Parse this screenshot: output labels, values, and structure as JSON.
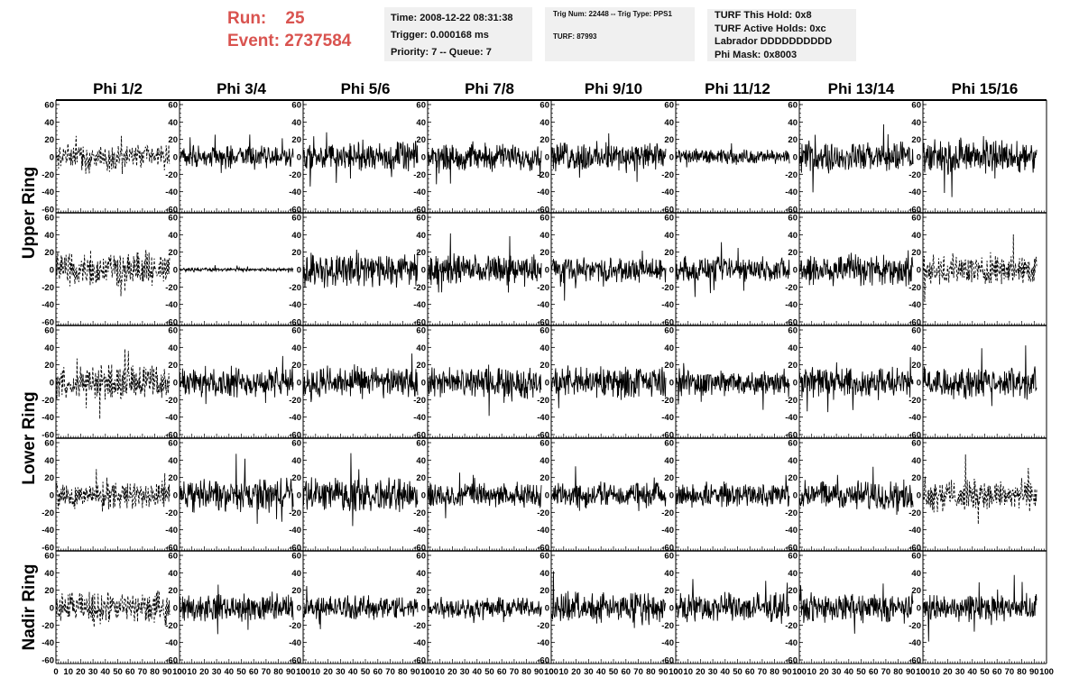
{
  "header": {
    "run_label": "Run:",
    "run_value": "25",
    "event_label": "Event:",
    "event_value": "2737584"
  },
  "info_box_1": {
    "time": "Time: 2008-12-22 08:31:38",
    "trigger": "Trigger: 0.000168 ms",
    "priority": "Priority: 7 -- Queue: 7"
  },
  "info_box_2": {
    "trig": "Trig Num: 22448 -- Trig Type: PPS1",
    "turf": "TURF: 87993"
  },
  "info_box_3": {
    "hold": "TURF This Hold: 0x8",
    "active": "TURF Active Holds: 0xc",
    "labrador": "Labrador DDDDDDDDDD",
    "phimask": "Phi Mask: 0x8003"
  },
  "colors": {
    "header_red": "#d9534f",
    "info_bg": "#f0f0f0",
    "trace": "#000000"
  },
  "chart_data": {
    "type": "line",
    "columns": [
      "Phi 1/2",
      "Phi 3/4",
      "Phi 5/6",
      "Phi 7/8",
      "Phi 9/10",
      "Phi 11/12",
      "Phi 13/14",
      "Phi 15/16"
    ],
    "ring_labels": [
      "Upper Ring",
      "Lower Ring",
      "Nadir Ring"
    ],
    "rows": 5,
    "xlim": [
      0,
      100
    ],
    "ylim": [
      -60,
      60
    ],
    "x_tick_labels": [
      "0",
      "10",
      "20",
      "30",
      "40",
      "50",
      "60",
      "70",
      "80",
      "90",
      "100"
    ],
    "y_tick_labels": [
      "60",
      "40",
      "20",
      "0",
      "-20",
      "-40",
      "-60"
    ],
    "samples_per_trace": 260,
    "trace_x_max": 92,
    "dashed_cells": [
      [
        0,
        0
      ],
      [
        1,
        0
      ],
      [
        1,
        7
      ],
      [
        2,
        0
      ],
      [
        3,
        0
      ],
      [
        3,
        7
      ],
      [
        4,
        0
      ]
    ],
    "amplitudes": [
      [
        10,
        9,
        12,
        11,
        12,
        6,
        12,
        14
      ],
      [
        14,
        1.5,
        14,
        12,
        10,
        10,
        14,
        12
      ],
      [
        14,
        12,
        13,
        12,
        13,
        11,
        12,
        13
      ],
      [
        11,
        13,
        14,
        10,
        10,
        10,
        12,
        13
      ],
      [
        13,
        11,
        10,
        9,
        12,
        12,
        12,
        11
      ]
    ]
  }
}
